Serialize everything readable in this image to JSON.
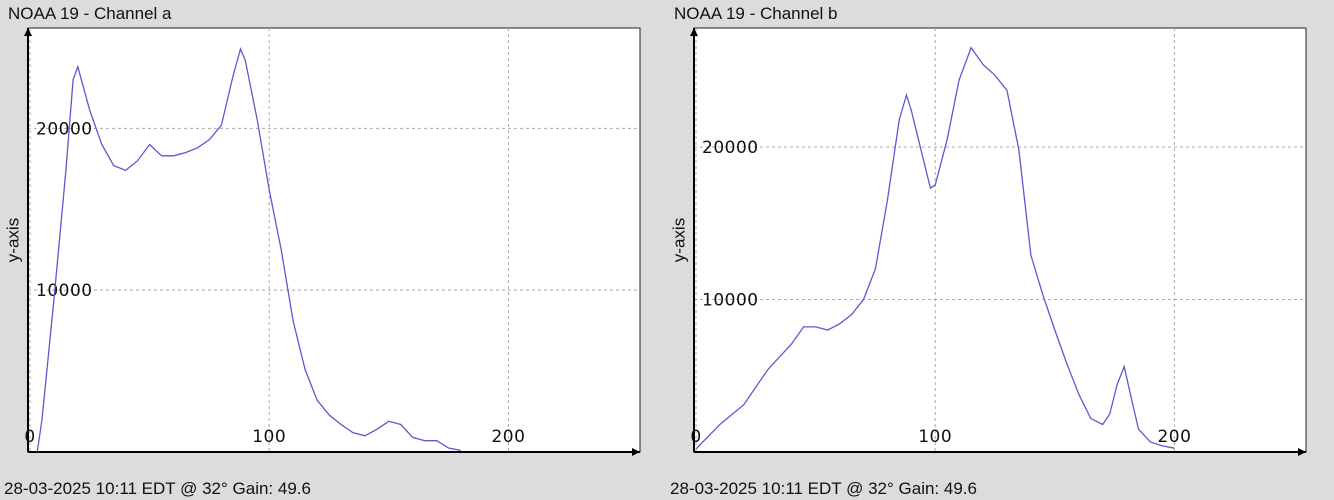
{
  "chart_data": [
    {
      "type": "line",
      "title": "NOAA 19 - Channel a",
      "ylabel": "y-axis",
      "footer": "28-03-2025 10:11 EDT @ 32° Gain: 49.6",
      "xlim": [
        0,
        255
      ],
      "ylim": [
        0,
        26200
      ],
      "xticks": [
        0,
        100,
        200
      ],
      "yticks": [
        10000,
        20000
      ],
      "grid": true,
      "series": [
        {
          "name": "Channel a",
          "color": "#5a5ad2",
          "x": [
            3,
            5,
            10,
            15,
            18,
            20,
            25,
            30,
            35,
            40,
            45,
            50,
            55,
            60,
            65,
            70,
            75,
            80,
            85,
            88,
            90,
            95,
            100,
            105,
            110,
            115,
            120,
            125,
            130,
            135,
            140,
            145,
            150,
            155,
            160,
            165,
            170,
            175,
            180
          ],
          "values": [
            0,
            2000,
            9400,
            17400,
            23000,
            23800,
            21100,
            19000,
            17700,
            17400,
            18000,
            19000,
            18300,
            18300,
            18500,
            18800,
            19300,
            20200,
            23300,
            24900,
            24200,
            20500,
            16200,
            12500,
            8100,
            5100,
            3200,
            2300,
            1700,
            1200,
            1000,
            1400,
            1900,
            1700,
            900,
            700,
            700,
            250,
            100
          ]
        }
      ]
    },
    {
      "type": "line",
      "title": "NOAA 19 - Channel b",
      "ylabel": "y-axis",
      "footer": "28-03-2025 10:11 EDT @ 32° Gain: 49.6",
      "xlim": [
        0,
        255
      ],
      "ylim": [
        0,
        27800
      ],
      "xticks": [
        0,
        100,
        200
      ],
      "yticks": [
        10000,
        20000
      ],
      "grid": true,
      "series": [
        {
          "name": "Channel b",
          "color": "#5a5ad2",
          "x": [
            0,
            10,
            20,
            30,
            40,
            45,
            50,
            55,
            60,
            65,
            70,
            75,
            80,
            85,
            88,
            90,
            95,
            98,
            100,
            105,
            110,
            115,
            120,
            125,
            130,
            135,
            140,
            145,
            150,
            155,
            160,
            165,
            170,
            173,
            176,
            179,
            182,
            185,
            190,
            195,
            200
          ],
          "values": [
            200,
            1800,
            3100,
            5400,
            7100,
            8200,
            8200,
            8000,
            8400,
            9000,
            10000,
            12000,
            16500,
            21800,
            23400,
            22400,
            19200,
            17300,
            17500,
            20500,
            24400,
            26500,
            25400,
            24700,
            23700,
            19800,
            12900,
            10300,
            8000,
            5800,
            3800,
            2200,
            1800,
            2500,
            4400,
            5600,
            3500,
            1500,
            650,
            400,
            250
          ]
        }
      ]
    }
  ]
}
